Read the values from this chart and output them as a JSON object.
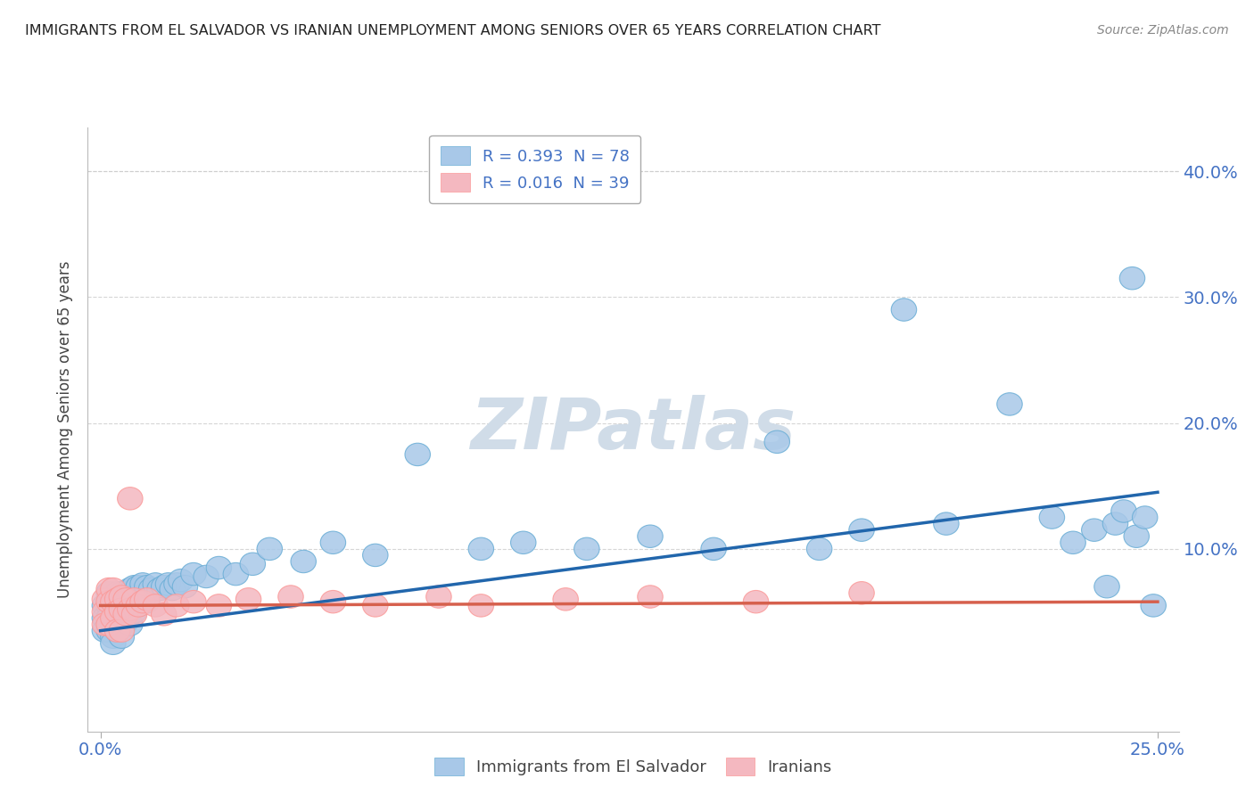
{
  "title": "IMMIGRANTS FROM EL SALVADOR VS IRANIAN UNEMPLOYMENT AMONG SENIORS OVER 65 YEARS CORRELATION CHART",
  "source": "Source: ZipAtlas.com",
  "ylabel": "Unemployment Among Seniors over 65 years",
  "blue_color": "#a8c8e8",
  "pink_color": "#f4b8c0",
  "blue_edge_color": "#6baed6",
  "pink_edge_color": "#fb9a99",
  "blue_line_color": "#2166ac",
  "pink_line_color": "#d6604d",
  "tick_color": "#4472c4",
  "watermark_color": "#d0dce8",
  "grid_color": "#cccccc",
  "xlim": [
    -0.003,
    0.255
  ],
  "ylim": [
    -0.045,
    0.435
  ],
  "yticks": [
    0.0,
    0.1,
    0.2,
    0.3,
    0.4
  ],
  "ytick_labels_right": [
    "",
    "10.0%",
    "20.0%",
    "30.0%",
    "40.0%"
  ],
  "xtick_labels": [
    "0.0%",
    "25.0%"
  ],
  "blue_R": "0.393",
  "blue_N": "78",
  "pink_R": "0.016",
  "pink_N": "39",
  "blue_line": {
    "x0": 0.0,
    "x1": 0.25,
    "y0": 0.035,
    "y1": 0.145
  },
  "pink_line": {
    "x0": 0.0,
    "x1": 0.25,
    "y0": 0.055,
    "y1": 0.058
  },
  "blue_scatter": {
    "x": [
      0.001,
      0.001,
      0.001,
      0.002,
      0.002,
      0.002,
      0.002,
      0.003,
      0.003,
      0.003,
      0.003,
      0.003,
      0.004,
      0.004,
      0.004,
      0.004,
      0.005,
      0.005,
      0.005,
      0.005,
      0.005,
      0.006,
      0.006,
      0.006,
      0.006,
      0.007,
      0.007,
      0.007,
      0.007,
      0.008,
      0.008,
      0.008,
      0.009,
      0.009,
      0.01,
      0.01,
      0.011,
      0.011,
      0.012,
      0.013,
      0.014,
      0.015,
      0.016,
      0.017,
      0.018,
      0.019,
      0.02,
      0.022,
      0.025,
      0.028,
      0.032,
      0.036,
      0.04,
      0.048,
      0.055,
      0.065,
      0.075,
      0.09,
      0.1,
      0.115,
      0.13,
      0.145,
      0.16,
      0.17,
      0.18,
      0.19,
      0.2,
      0.215,
      0.225,
      0.23,
      0.235,
      0.238,
      0.24,
      0.242,
      0.244,
      0.245,
      0.247,
      0.249
    ],
    "y": [
      0.055,
      0.045,
      0.035,
      0.065,
      0.055,
      0.045,
      0.035,
      0.06,
      0.055,
      0.04,
      0.03,
      0.025,
      0.065,
      0.06,
      0.05,
      0.035,
      0.065,
      0.06,
      0.055,
      0.048,
      0.03,
      0.065,
      0.06,
      0.055,
      0.042,
      0.068,
      0.063,
      0.055,
      0.04,
      0.07,
      0.062,
      0.05,
      0.07,
      0.055,
      0.072,
      0.06,
      0.07,
      0.058,
      0.068,
      0.072,
      0.068,
      0.07,
      0.072,
      0.068,
      0.072,
      0.075,
      0.07,
      0.08,
      0.078,
      0.085,
      0.08,
      0.088,
      0.1,
      0.09,
      0.105,
      0.095,
      0.175,
      0.1,
      0.105,
      0.1,
      0.11,
      0.1,
      0.185,
      0.1,
      0.115,
      0.29,
      0.12,
      0.215,
      0.125,
      0.105,
      0.115,
      0.07,
      0.12,
      0.13,
      0.315,
      0.11,
      0.125,
      0.055
    ]
  },
  "pink_scatter": {
    "x": [
      0.001,
      0.001,
      0.001,
      0.002,
      0.002,
      0.002,
      0.003,
      0.003,
      0.003,
      0.004,
      0.004,
      0.004,
      0.005,
      0.005,
      0.005,
      0.006,
      0.006,
      0.007,
      0.007,
      0.008,
      0.008,
      0.009,
      0.01,
      0.011,
      0.013,
      0.015,
      0.018,
      0.022,
      0.028,
      0.035,
      0.045,
      0.055,
      0.065,
      0.08,
      0.09,
      0.11,
      0.13,
      0.155,
      0.18
    ],
    "y": [
      0.06,
      0.05,
      0.04,
      0.068,
      0.058,
      0.04,
      0.068,
      0.058,
      0.045,
      0.06,
      0.05,
      0.035,
      0.062,
      0.052,
      0.035,
      0.06,
      0.048,
      0.14,
      0.052,
      0.06,
      0.048,
      0.055,
      0.058,
      0.06,
      0.055,
      0.048,
      0.055,
      0.058,
      0.055,
      0.06,
      0.062,
      0.058,
      0.055,
      0.062,
      0.055,
      0.06,
      0.062,
      0.058,
      0.065
    ]
  }
}
